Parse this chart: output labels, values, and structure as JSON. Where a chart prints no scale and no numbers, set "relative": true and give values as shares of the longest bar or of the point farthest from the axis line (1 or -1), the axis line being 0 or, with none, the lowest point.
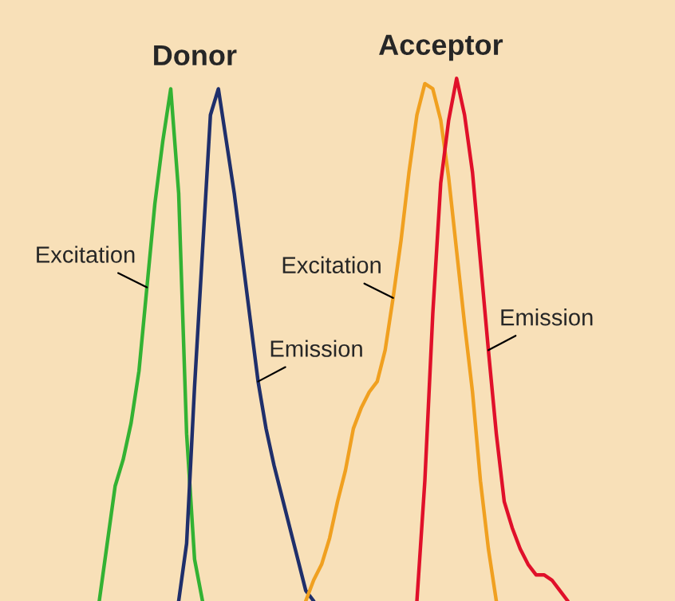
{
  "chart_data": {
    "type": "line",
    "relative": true,
    "annotations": [
      "Donor",
      "Acceptor"
    ],
    "categories": [
      null,
      null,
      null,
      null,
      null,
      null,
      null,
      null,
      null,
      null,
      null,
      null,
      null,
      null,
      null,
      null,
      null,
      null,
      null,
      null,
      null,
      null,
      null,
      null,
      null,
      null,
      null,
      null,
      null,
      null,
      null,
      null,
      null,
      null,
      null,
      null,
      null,
      null,
      null,
      null,
      null,
      null,
      null,
      null,
      null,
      null,
      null,
      null,
      null,
      null,
      null,
      null,
      null,
      null,
      null,
      null,
      null,
      null,
      null,
      null,
      null,
      null,
      null,
      null,
      null,
      null,
      null,
      null,
      null,
      null,
      null,
      null,
      null,
      null,
      null,
      null,
      null,
      null,
      null,
      null,
      null,
      null,
      null,
      null,
      null
    ],
    "series": [
      {
        "name": "Excitation",
        "color": "#33b233",
        "values": [
          null,
          null,
          null,
          null,
          null,
          null,
          null,
          null,
          null,
          null,
          null,
          null,
          0,
          0.11,
          0.22,
          0.27,
          0.34,
          0.44,
          0.6,
          0.76,
          0.88,
          0.98,
          0.78,
          0.32,
          0.08,
          0,
          null,
          null,
          null,
          null,
          null,
          null,
          null,
          null,
          null,
          null,
          null,
          null,
          null,
          null,
          null,
          null,
          null,
          null,
          null,
          null,
          null,
          null,
          null,
          null,
          null,
          null,
          null,
          null,
          null,
          null,
          null,
          null,
          null,
          null,
          null,
          null,
          null,
          null,
          null,
          null,
          null,
          null,
          null,
          null,
          null,
          null,
          null,
          null,
          null,
          null,
          null,
          null,
          null,
          null,
          null,
          null,
          null,
          null,
          null
        ]
      },
      {
        "name": "Emission",
        "color": "#1f2f6b",
        "values": [
          null,
          null,
          null,
          null,
          null,
          null,
          null,
          null,
          null,
          null,
          null,
          null,
          null,
          null,
          null,
          null,
          null,
          null,
          null,
          null,
          null,
          null,
          0,
          0.11,
          0.41,
          0.67,
          0.93,
          0.98,
          0.88,
          0.78,
          0.66,
          0.54,
          0.42,
          0.33,
          0.26,
          0.2,
          0.14,
          0.08,
          0.02,
          0,
          null,
          null,
          null,
          null,
          null,
          null,
          null,
          null,
          null,
          null,
          null,
          null,
          null,
          null,
          null,
          null,
          null,
          null,
          null,
          null,
          null,
          null,
          null,
          null,
          null,
          null,
          null,
          null,
          null,
          null,
          null,
          null,
          null,
          null,
          null,
          null,
          null,
          null,
          null,
          null,
          null,
          null,
          null,
          null,
          null
        ]
      },
      {
        "name": "Excitation",
        "color": "#f0a020",
        "values": [
          null,
          null,
          null,
          null,
          null,
          null,
          null,
          null,
          null,
          null,
          null,
          null,
          null,
          null,
          null,
          null,
          null,
          null,
          null,
          null,
          null,
          null,
          null,
          null,
          null,
          null,
          null,
          null,
          null,
          null,
          null,
          null,
          null,
          null,
          null,
          null,
          null,
          null,
          0,
          0.04,
          0.07,
          0.12,
          0.19,
          0.25,
          0.33,
          0.37,
          0.4,
          0.42,
          0.48,
          0.58,
          0.69,
          0.82,
          0.93,
          0.99,
          0.98,
          0.92,
          0.81,
          0.67,
          0.53,
          0.4,
          0.23,
          0.1,
          0,
          null,
          null,
          null,
          null,
          null,
          null,
          null,
          null,
          null,
          null,
          null,
          null,
          null,
          null,
          null,
          null,
          null,
          null,
          null,
          null,
          null,
          null
        ]
      },
      {
        "name": "Emission",
        "color": "#e0102a",
        "values": [
          null,
          null,
          null,
          null,
          null,
          null,
          null,
          null,
          null,
          null,
          null,
          null,
          null,
          null,
          null,
          null,
          null,
          null,
          null,
          null,
          null,
          null,
          null,
          null,
          null,
          null,
          null,
          null,
          null,
          null,
          null,
          null,
          null,
          null,
          null,
          null,
          null,
          null,
          null,
          null,
          null,
          null,
          null,
          null,
          null,
          null,
          null,
          null,
          null,
          null,
          null,
          null,
          0,
          0.23,
          0.55,
          0.8,
          0.92,
          1.0,
          0.93,
          0.82,
          0.65,
          0.48,
          0.32,
          0.19,
          0.14,
          0.1,
          0.07,
          0.05,
          0.05,
          0.04,
          0.02,
          0,
          null,
          null,
          null,
          null,
          null,
          null,
          null,
          null,
          null,
          null,
          null,
          null,
          null
        ]
      }
    ]
  }
}
